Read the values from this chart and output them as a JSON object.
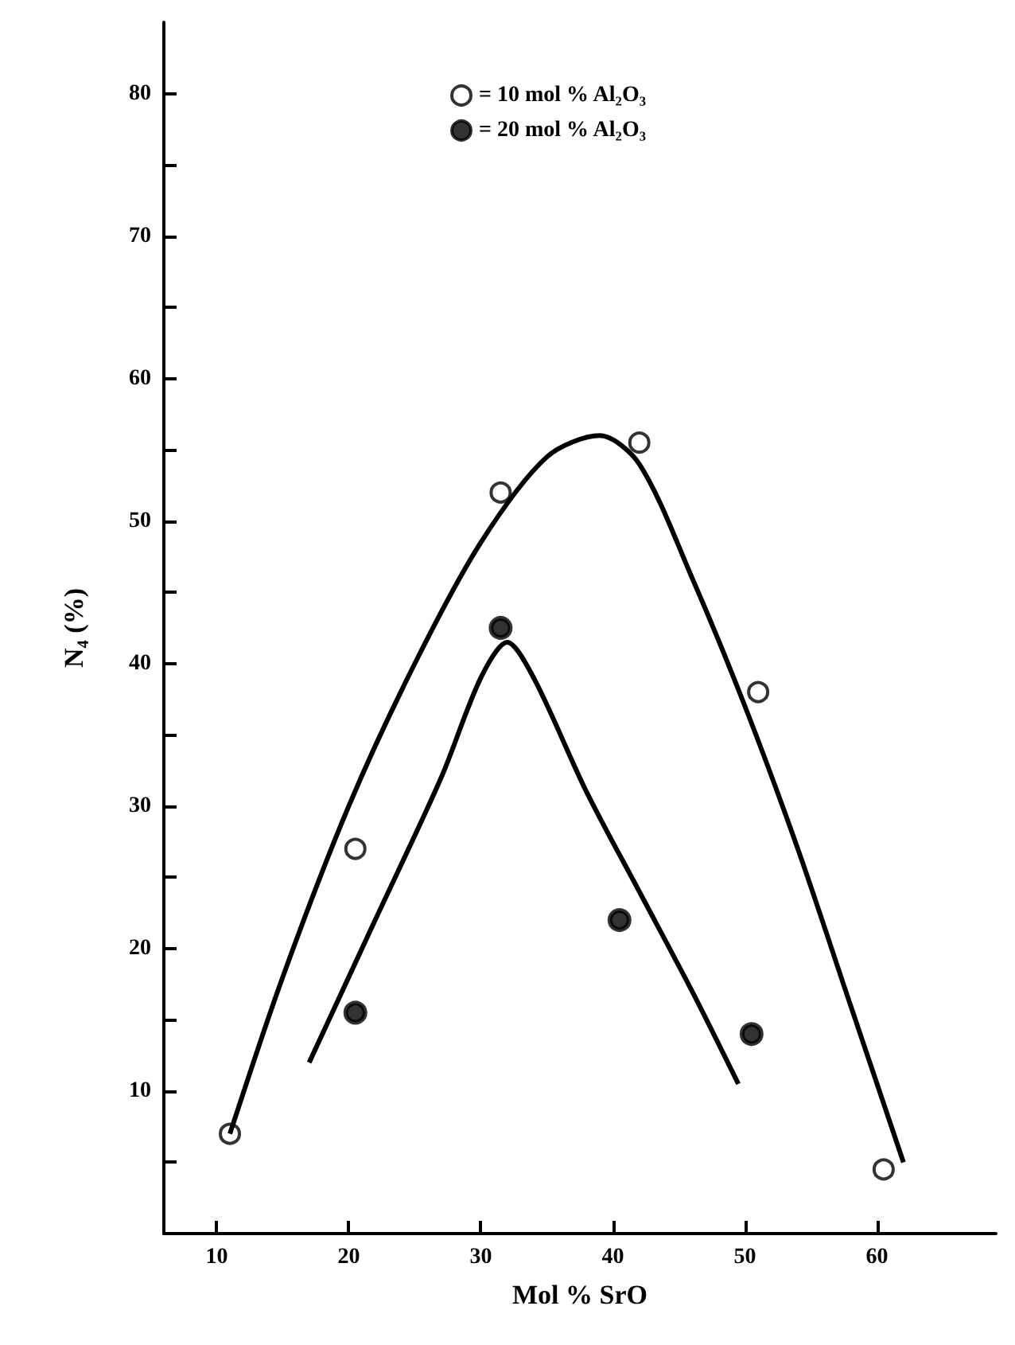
{
  "chart_data": {
    "type": "scatter",
    "xlabel": "Mol % SrO",
    "ylabel": "N₄ (%)",
    "xlim": [
      6,
      69
    ],
    "ylim": [
      0,
      85
    ],
    "xticks": [
      10,
      20,
      30,
      40,
      50,
      60
    ],
    "yticks": [
      {
        "value": 5,
        "label": null
      },
      10,
      {
        "value": 15,
        "label": null
      },
      20,
      {
        "value": 25,
        "label": null
      },
      30,
      {
        "value": 35,
        "label": null
      },
      40,
      {
        "value": 45,
        "label": null
      },
      50,
      {
        "value": 55,
        "label": null
      },
      60,
      {
        "value": 65,
        "label": null
      },
      70,
      {
        "value": 75,
        "label": null
      },
      80
    ],
    "legend": "top",
    "grid": false,
    "series": [
      {
        "name": "= 10 mol % Al₂O₃",
        "color": "#000000",
        "x": [
          11,
          20.5,
          31.5,
          42,
          51,
          60.5
        ],
        "values": [
          7,
          27,
          52,
          55.5,
          38,
          4.5
        ]
      },
      {
        "name": "= 20 mol % Al₂O₃",
        "marker": "circle",
        "color": "#000000",
        "x": [
          20.5,
          31.5,
          40.5,
          50.5
        ],
        "values": [
          15.5,
          42.5,
          22,
          14
        ]
      },
      {
        "type": "line",
        "color": "#000000",
        "x": [
          11,
          15,
          20,
          25,
          30,
          35,
          39,
          42,
          46,
          50,
          54,
          58,
          62
        ],
        "values": [
          7,
          18,
          30,
          40,
          48.5,
          54.5,
          56,
          54,
          46,
          37,
          27,
          16,
          5
        ]
      },
      {
        "type": "line",
        "color": "#000000",
        "x": [
          17,
          22,
          27,
          30,
          32,
          34,
          38,
          42,
          46,
          49.5
        ],
        "values": [
          12,
          22,
          32,
          39,
          41.5,
          39,
          31,
          24,
          17,
          10.5
        ]
      }
    ]
  }
}
